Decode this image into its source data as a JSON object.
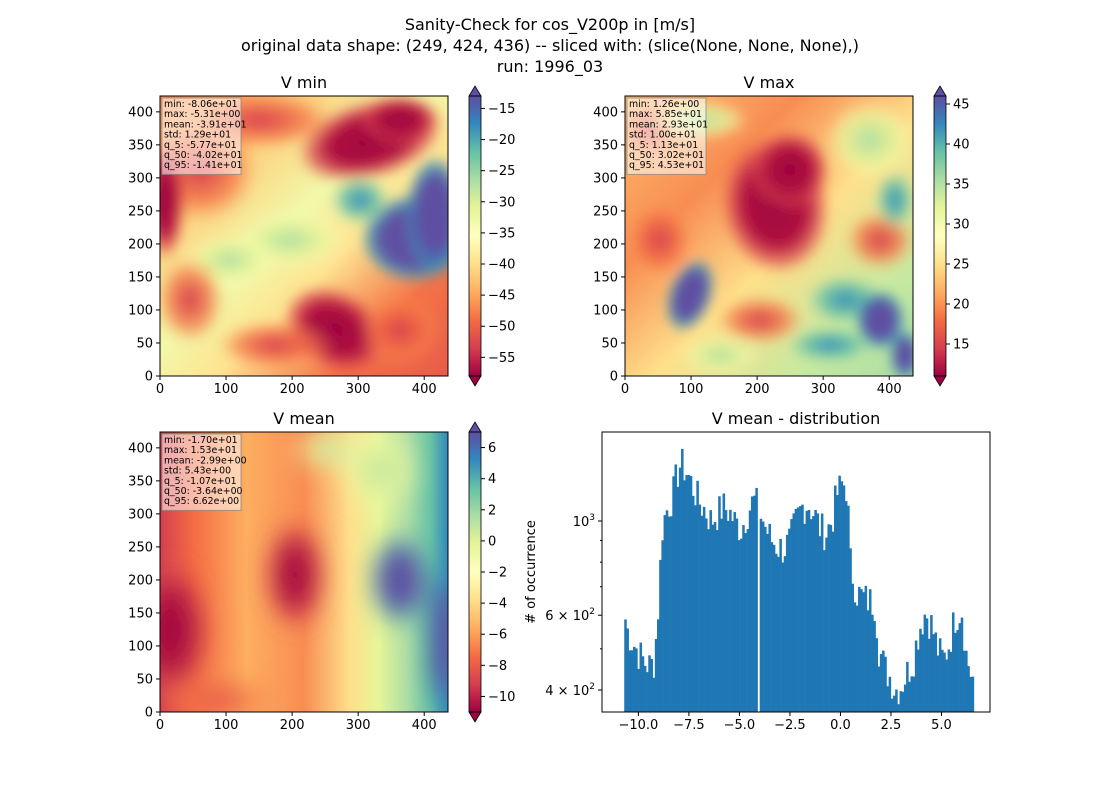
{
  "figure": {
    "title_lines": [
      "Sanity-Check for cos_V200p in [m/s]",
      "original data shape: (249, 424, 436) -- sliced with: (slice(None, None, None),)",
      "run: 1996_03"
    ]
  },
  "colormap": {
    "name": "Spectral",
    "stops": [
      "#9e0142",
      "#d53e4f",
      "#f46d43",
      "#fdae61",
      "#fee08b",
      "#ffffbf",
      "#e6f598",
      "#abdda4",
      "#66c2a5",
      "#3288bd",
      "#5e4fa2"
    ]
  },
  "chart_data": [
    {
      "type": "heatmap",
      "id": "vmin",
      "title": "V min",
      "xlim": [
        0,
        436
      ],
      "ylim": [
        0,
        424
      ],
      "xticks": [
        0,
        100,
        200,
        300,
        400
      ],
      "yticks": [
        0,
        50,
        100,
        150,
        200,
        250,
        300,
        350,
        400
      ],
      "clim": [
        -58,
        -13
      ],
      "colorbar_ticks": [
        -55,
        -50,
        -45,
        -40,
        -35,
        -30,
        -25,
        -20,
        -15
      ],
      "stats": [
        "min: -8.06e+01",
        "max: -5.31e+00",
        "mean: -3.91e+01",
        "std: 1.29e+01",
        "q_5: -5.77e+01",
        "q_50: -4.02e+01",
        "q_95: -1.41e+01"
      ]
    },
    {
      "type": "heatmap",
      "id": "vmax",
      "title": "V max",
      "xlim": [
        0,
        436
      ],
      "ylim": [
        0,
        424
      ],
      "xticks": [
        0,
        100,
        200,
        300,
        400
      ],
      "yticks": [
        0,
        50,
        100,
        150,
        200,
        250,
        300,
        350,
        400
      ],
      "clim": [
        11,
        46
      ],
      "colorbar_ticks": [
        15,
        20,
        25,
        30,
        35,
        40,
        45
      ],
      "stats": [
        "min: 1.26e+00",
        "max: 5.85e+01",
        "mean: 2.93e+01",
        "std: 1.00e+01",
        "q_5: 1.13e+01",
        "q_50: 3.02e+01",
        "q_95: 4.53e+01"
      ]
    },
    {
      "type": "heatmap",
      "id": "vmean",
      "title": "V mean",
      "xlim": [
        0,
        436
      ],
      "ylim": [
        0,
        424
      ],
      "xticks": [
        0,
        100,
        200,
        300,
        400
      ],
      "yticks": [
        0,
        50,
        100,
        150,
        200,
        250,
        300,
        350,
        400
      ],
      "clim": [
        -11,
        7
      ],
      "colorbar_ticks": [
        -10,
        -8,
        -6,
        -4,
        -2,
        0,
        2,
        4,
        6
      ],
      "stats": [
        "min: -1.70e+01",
        "max: 1.53e+01",
        "mean: -2.99e+00",
        "std: 5.43e+00",
        "q_5: -1.07e+01",
        "q_50: -3.64e+00",
        "q_95: 6.62e+00"
      ]
    },
    {
      "type": "bar",
      "id": "dist",
      "title": "V mean - distribution",
      "ylabel": "# of occurrence",
      "yscale": "log",
      "xlim": [
        -11.8,
        7.4
      ],
      "ylim": [
        355,
        1620
      ],
      "xticks": [
        -10.0,
        -7.5,
        -5.0,
        -2.5,
        0.0,
        2.5,
        5.0
      ],
      "xtick_labels": [
        "−10.0",
        "−7.5",
        "−5.0",
        "−2.5",
        "0.0",
        "2.5",
        "5.0"
      ],
      "ytick_major": [
        {
          "value": 400,
          "base": "4 × 10",
          "exp": "2"
        },
        {
          "value": 600,
          "base": "6 × 10",
          "exp": "2"
        },
        {
          "value": 1000,
          "base": "10",
          "exp": "3"
        }
      ],
      "ytick_minor": [
        500,
        700,
        800,
        900
      ],
      "bin_range": [
        -10.7,
        6.6
      ],
      "gap_x": -4.0,
      "color": "#1f77b4",
      "profile": [
        [
          -10.7,
          620
        ],
        [
          -10.6,
          560
        ],
        [
          -10.3,
          520
        ],
        [
          -10.0,
          490
        ],
        [
          -9.7,
          465
        ],
        [
          -9.4,
          455
        ],
        [
          -9.2,
          470
        ],
        [
          -9.0,
          640
        ],
        [
          -8.8,
          980
        ],
        [
          -8.6,
          1060
        ],
        [
          -8.3,
          1150
        ],
        [
          -8.1,
          1280
        ],
        [
          -7.9,
          1370
        ],
        [
          -7.6,
          1300
        ],
        [
          -7.3,
          1200
        ],
        [
          -7.0,
          1110
        ],
        [
          -6.7,
          1060
        ],
        [
          -6.4,
          1000
        ],
        [
          -6.1,
          1040
        ],
        [
          -5.8,
          1080
        ],
        [
          -5.5,
          1050
        ],
        [
          -5.2,
          990
        ],
        [
          -4.9,
          960
        ],
        [
          -4.6,
          1050
        ],
        [
          -4.3,
          1120
        ],
        [
          -4.0,
          1070
        ],
        [
          -3.7,
          960
        ],
        [
          -3.4,
          900
        ],
        [
          -3.1,
          870
        ],
        [
          -2.8,
          860
        ],
        [
          -2.5,
          900
        ],
        [
          -2.2,
          1000
        ],
        [
          -1.9,
          1080
        ],
        [
          -1.6,
          1100
        ],
        [
          -1.3,
          1040
        ],
        [
          -1.0,
          960
        ],
        [
          -0.7,
          940
        ],
        [
          -0.4,
          1010
        ],
        [
          -0.2,
          1150
        ],
        [
          0.1,
          1230
        ],
        [
          0.3,
          1200
        ],
        [
          0.5,
          780
        ],
        [
          0.8,
          680
        ],
        [
          1.1,
          660
        ],
        [
          1.4,
          650
        ],
        [
          1.7,
          640
        ],
        [
          1.9,
          500
        ],
        [
          2.2,
          450
        ],
        [
          2.5,
          425
        ],
        [
          2.7,
          400
        ],
        [
          3.0,
          410
        ],
        [
          3.3,
          440
        ],
        [
          3.6,
          470
        ],
        [
          3.9,
          560
        ],
        [
          4.2,
          610
        ],
        [
          4.5,
          570
        ],
        [
          4.8,
          500
        ],
        [
          5.1,
          470
        ],
        [
          5.4,
          520
        ],
        [
          5.7,
          600
        ],
        [
          6.0,
          620
        ],
        [
          6.2,
          490
        ],
        [
          6.4,
          445
        ],
        [
          6.6,
          420
        ]
      ]
    }
  ]
}
